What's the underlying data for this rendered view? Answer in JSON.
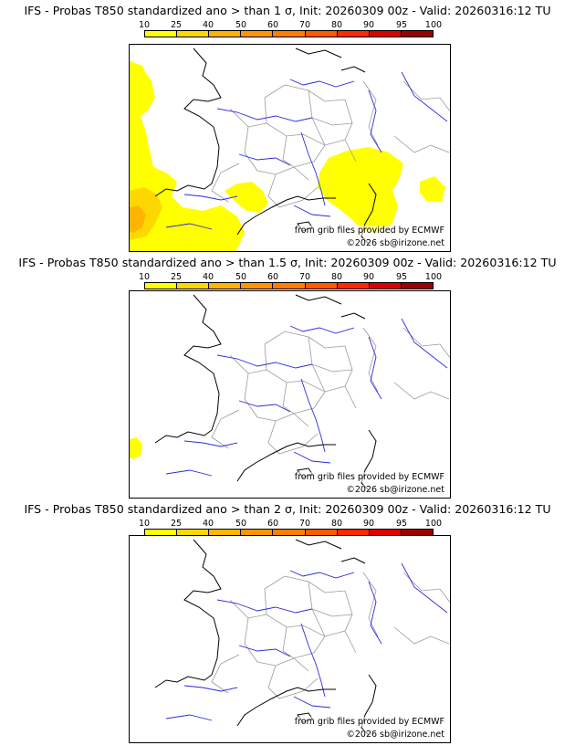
{
  "colors": {
    "scale": [
      "#ffff00",
      "#ffd700",
      "#ffb400",
      "#ff9600",
      "#ff7d00",
      "#ff5a00",
      "#ff2800",
      "#dc0000",
      "#9b0000",
      "#5a0000"
    ],
    "coast": "#000000",
    "rivers": "#2a2ae0",
    "borders": "#9a9a9a"
  },
  "scale_labels": [
    "10",
    "25",
    "40",
    "50",
    "60",
    "70",
    "80",
    "90",
    "95",
    "100"
  ],
  "panels": [
    {
      "title": "IFS - Probas T850  standardized ano > than 1 σ, Init: 20260309 00z - Valid: 20260316:12 TU",
      "threshold": "1 σ",
      "credit_source": "from grib files provided by ECMWF",
      "credit_copyright": "©2026 sb@irizone.net"
    },
    {
      "title": "IFS - Probas T850  standardized ano > than 1.5 σ, Init: 20260309 00z - Valid: 20260316:12 TU",
      "threshold": "1.5 σ",
      "credit_source": "from grib files provided by ECMWF",
      "credit_copyright": "©2026 sb@irizone.net"
    },
    {
      "title": "IFS - Probas T850  standardized ano > than 2 σ, Init: 20260309 00z - Valid: 20260316:12 TU",
      "threshold": "2 σ",
      "credit_source": "from grib files provided by ECMWF",
      "credit_copyright": "©2026 sb@irizone.net"
    }
  ]
}
